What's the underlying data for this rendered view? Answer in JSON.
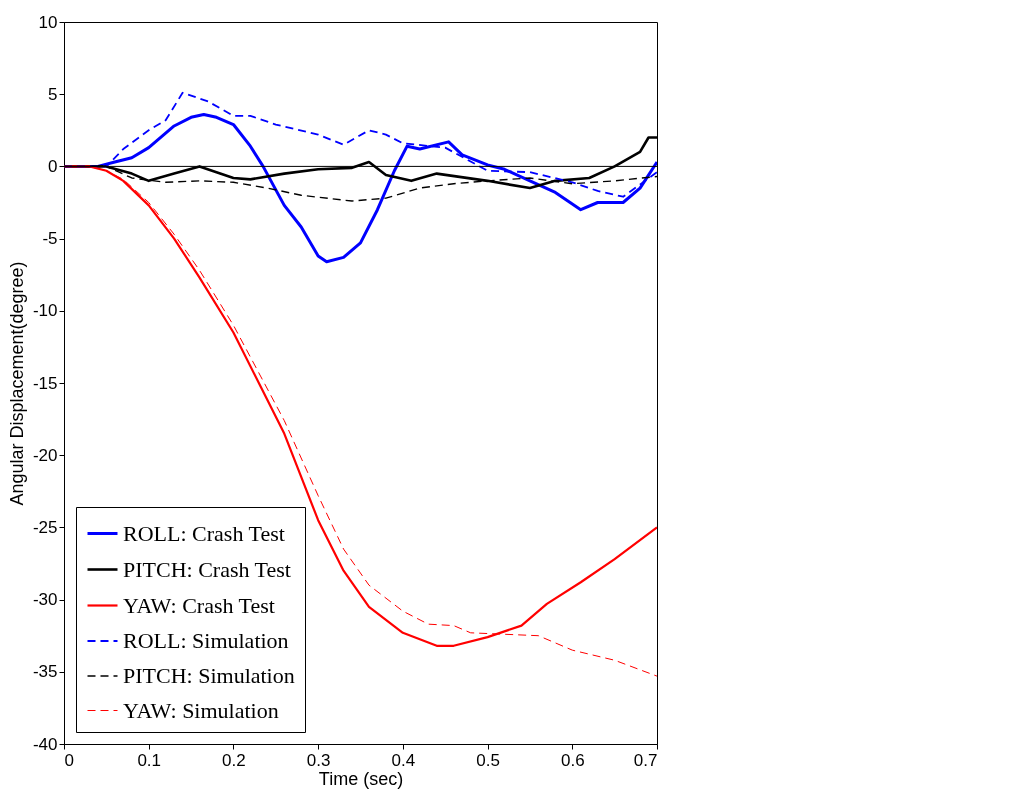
{
  "chart_data": {
    "type": "line",
    "xlabel": "Time (sec)",
    "ylabel": "Angular Displacement(degree)",
    "xlim": [
      0,
      0.7
    ],
    "ylim": [
      -40,
      10
    ],
    "xticks": [
      0,
      0.1,
      0.2,
      0.3,
      0.4,
      0.5,
      0.6,
      0.7
    ],
    "yticks": [
      -40,
      -35,
      -30,
      -25,
      -20,
      -15,
      -10,
      -5,
      0,
      5,
      10
    ],
    "grid": false,
    "legend": "bottom left",
    "ref_lines": [
      {
        "axis": "y",
        "value": 0,
        "color": "#000000"
      }
    ],
    "series": [
      {
        "name": "ROLL:  Crash Test",
        "color": "#0000ff",
        "line_style": "solid",
        "x": [
          0,
          0.04,
          0.06,
          0.08,
          0.1,
          0.13,
          0.15,
          0.165,
          0.18,
          0.2,
          0.22,
          0.235,
          0.26,
          0.28,
          0.3,
          0.31,
          0.33,
          0.35,
          0.37,
          0.39,
          0.405,
          0.42,
          0.454,
          0.47,
          0.5,
          0.52,
          0.55,
          0.58,
          0.61,
          0.63,
          0.66,
          0.68,
          0.7
        ],
        "values": [
          0,
          0,
          0.3,
          0.6,
          1.3,
          2.8,
          3.4,
          3.6,
          3.4,
          2.9,
          1.4,
          0,
          -2.7,
          -4.2,
          -6.2,
          -6.6,
          -6.3,
          -5.3,
          -3,
          -0.3,
          1.4,
          1.2,
          1.7,
          0.8,
          0.1,
          -0.2,
          -1,
          -1.8,
          -3,
          -2.5,
          -2.5,
          -1.5,
          0.3
        ]
      },
      {
        "name": "PITCH: Crash Test",
        "color": "#000000",
        "line_style": "solid",
        "x": [
          0,
          0.05,
          0.08,
          0.1,
          0.13,
          0.16,
          0.2,
          0.22,
          0.26,
          0.3,
          0.34,
          0.36,
          0.38,
          0.41,
          0.44,
          0.5,
          0.55,
          0.58,
          0.62,
          0.65,
          0.68,
          0.69,
          0.7
        ],
        "values": [
          0,
          0,
          -0.5,
          -1,
          -0.5,
          0,
          -0.8,
          -0.9,
          -0.5,
          -0.2,
          -0.1,
          0.3,
          -0.6,
          -1,
          -0.5,
          -1,
          -1.5,
          -1,
          -0.8,
          0,
          1,
          2,
          2
        ]
      },
      {
        "name": "YAW:   Crash Test",
        "color": "#ff0000",
        "line_style": "solid",
        "x": [
          0,
          0.03,
          0.05,
          0.07,
          0.1,
          0.13,
          0.16,
          0.2,
          0.23,
          0.26,
          0.28,
          0.3,
          0.33,
          0.36,
          0.4,
          0.44,
          0.46,
          0.5,
          0.54,
          0.57,
          0.61,
          0.65,
          0.7
        ],
        "values": [
          0,
          0,
          -0.3,
          -1,
          -2.7,
          -5,
          -7.7,
          -11.5,
          -15,
          -18.5,
          -21.5,
          -24.5,
          -28,
          -30.5,
          -32.3,
          -33.2,
          -33.2,
          -32.6,
          -31.8,
          -30.3,
          -28.8,
          -27.2,
          -25
        ]
      },
      {
        "name": "ROLL:  Simulation",
        "color": "#0000ff",
        "line_style": "dashed",
        "x": [
          0,
          0.05,
          0.07,
          0.1,
          0.12,
          0.14,
          0.17,
          0.2,
          0.22,
          0.25,
          0.3,
          0.33,
          0.36,
          0.38,
          0.4,
          0.45,
          0.5,
          0.55,
          0.6,
          0.63,
          0.66,
          0.7
        ],
        "values": [
          0,
          0,
          1.2,
          2.5,
          3.2,
          5.1,
          4.5,
          3.5,
          3.5,
          2.9,
          2.2,
          1.5,
          2.5,
          2.2,
          1.6,
          1.3,
          -0.3,
          -0.4,
          -1.1,
          -1.7,
          -2.1,
          -0.4
        ]
      },
      {
        "name": "PITCH: Simulation",
        "color": "#000000",
        "line_style": "dashed",
        "x": [
          0,
          0.05,
          0.08,
          0.12,
          0.16,
          0.2,
          0.24,
          0.28,
          0.34,
          0.38,
          0.42,
          0.46,
          0.5,
          0.55,
          0.6,
          0.65,
          0.7
        ],
        "values": [
          0,
          0,
          -0.8,
          -1.1,
          -1,
          -1.1,
          -1.5,
          -2,
          -2.4,
          -2.2,
          -1.5,
          -1.2,
          -1,
          -0.8,
          -1.2,
          -1,
          -0.7
        ]
      },
      {
        "name": "YAW:   Simulation",
        "color": "#ff0000",
        "line_style": "dashed",
        "x": [
          0,
          0.03,
          0.05,
          0.07,
          0.1,
          0.13,
          0.16,
          0.2,
          0.23,
          0.26,
          0.3,
          0.33,
          0.36,
          0.4,
          0.43,
          0.46,
          0.48,
          0.52,
          0.56,
          0.6,
          0.65,
          0.7
        ],
        "values": [
          0,
          0,
          -0.3,
          -0.9,
          -2.5,
          -4.7,
          -7.2,
          -11,
          -14.3,
          -17.6,
          -22.8,
          -26.5,
          -29,
          -30.8,
          -31.7,
          -31.8,
          -32.3,
          -32.4,
          -32.5,
          -33.5,
          -34.2,
          -35.3
        ]
      }
    ]
  }
}
